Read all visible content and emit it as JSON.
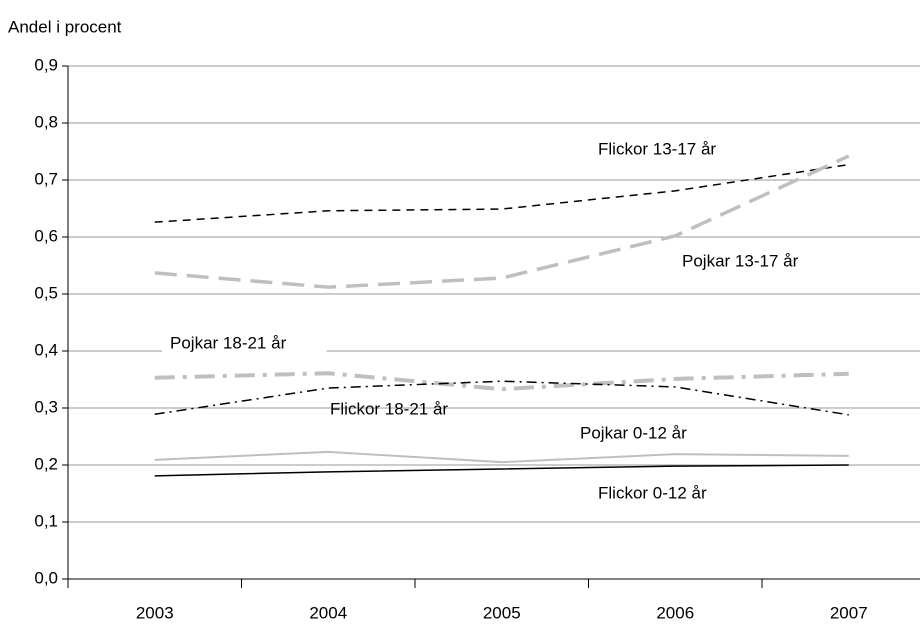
{
  "chart_data": {
    "type": "line",
    "y_axis_label": "Andel i procent",
    "categories": [
      "2003",
      "2004",
      "2005",
      "2006",
      "2007"
    ],
    "ylim": [
      0,
      0.9
    ],
    "yticks": [
      {
        "value": 0,
        "label": "0,0"
      },
      {
        "value": 0.1,
        "label": "0,1"
      },
      {
        "value": 0.2,
        "label": "0,2"
      },
      {
        "value": 0.3,
        "label": "0,3"
      },
      {
        "value": 0.4,
        "label": "0,4"
      },
      {
        "value": 0.5,
        "label": "0,5"
      },
      {
        "value": 0.6,
        "label": "0,6"
      },
      {
        "value": 0.7,
        "label": "0,7"
      },
      {
        "value": 0.8,
        "label": "0,8"
      },
      {
        "value": 0.9,
        "label": "0,9"
      }
    ],
    "grid": true,
    "series": [
      {
        "name": "Flickor 13-17 år",
        "color": "#000000",
        "dash": "8 6",
        "width": 1.5,
        "values": [
          0.626,
          0.646,
          0.649,
          0.681,
          0.727
        ]
      },
      {
        "name": "Pojkar 13-17 år",
        "color": "#bfbfbf",
        "dash": "22 10",
        "width": 3.5,
        "values": [
          0.537,
          0.512,
          0.528,
          0.602,
          0.742
        ]
      },
      {
        "name": "Pojkar 18-21 år",
        "color": "#bfbfbf",
        "dash": "20 8 4 8",
        "width": 4,
        "values": [
          0.353,
          0.361,
          0.333,
          0.351,
          0.36
        ]
      },
      {
        "name": "Flickor 18-21 år",
        "color": "#000000",
        "dash": "10 5 2 5",
        "width": 1.5,
        "values": [
          0.289,
          0.335,
          0.347,
          0.337,
          0.288
        ]
      },
      {
        "name": "Pojkar 0-12 år",
        "color": "#bfbfbf",
        "dash": "none",
        "width": 2,
        "values": [
          0.209,
          0.223,
          0.205,
          0.219,
          0.216
        ]
      },
      {
        "name": "Flickor 0-12 år",
        "color": "#000000",
        "dash": "none",
        "width": 1.5,
        "values": [
          0.181,
          0.188,
          0.193,
          0.198,
          0.2
        ]
      }
    ]
  }
}
